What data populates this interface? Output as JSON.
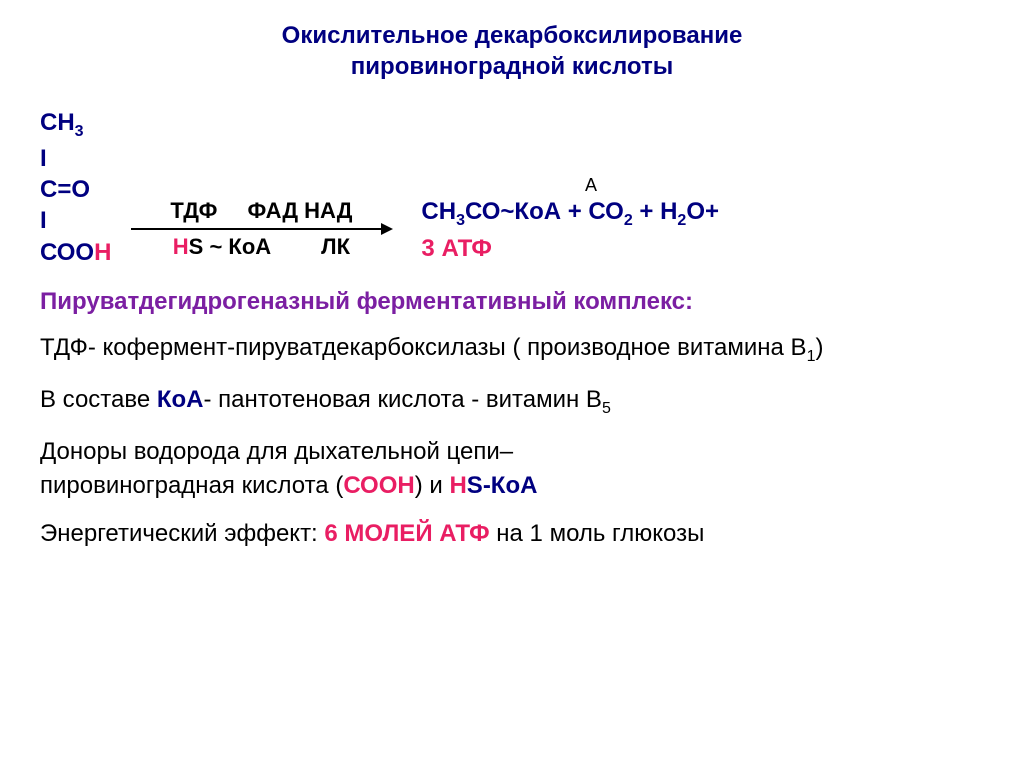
{
  "title_line1": "Окислительное декарбоксилирование",
  "title_line2": "пировиноградной кислоты",
  "formula": {
    "line1": "СН",
    "line1_sub": "3",
    "line2": "I",
    "line3": "С=О",
    "line4": "I",
    "line5a": "СОО",
    "line5b": "Н"
  },
  "arrow": {
    "top1": "ТДФ",
    "top2": "ФАД НАД",
    "bot1a": "Н",
    "bot1b": "S ~ КоА",
    "bot2": "ЛК"
  },
  "product": {
    "a_label": "А",
    "p1": "СН",
    "p1_sub": "3",
    "p2": "СО~КоА + СО",
    "p2_sub": "2",
    "p3": " + Н",
    "p3_sub": "2",
    "p4": "О+",
    "atp_n": "3",
    "atp": " АТФ"
  },
  "heading": "Пируватдегидрогеназный ферментативный комплекс:",
  "line_tdf_a": "ТДФ- кофермент-пируватдекарбоксилазы ( производное витамина В",
  "line_tdf_sub": "1",
  "line_tdf_b": ")",
  "line_koa_a": "В составе ",
  "line_koa_b": "КоА",
  "line_koa_c": "- пантотеновая кислота - витамин В",
  "line_koa_sub": "5",
  "line_donor1": "Доноры  водорода  для дыхательной цепи–",
  "line_donor2a": "пировиноградная кислота (",
  "line_donor2b": "СООН",
  "line_donor2c": ") и ",
  "line_donor2d": "Н",
  "line_donor2e": "S",
  "line_donor2f": "-КоА",
  "line_energy_a": "Энергетический эффект: ",
  "line_energy_b": "6 МОЛЕЙ АТФ",
  "line_energy_c": " на 1 моль глюкозы",
  "colors": {
    "navy": "#000080",
    "pink": "#e91e63",
    "purple": "#7b1fa2",
    "black": "#000000",
    "bg": "#ffffff"
  },
  "fonts": {
    "title": 24,
    "body": 24,
    "sub": 16
  }
}
